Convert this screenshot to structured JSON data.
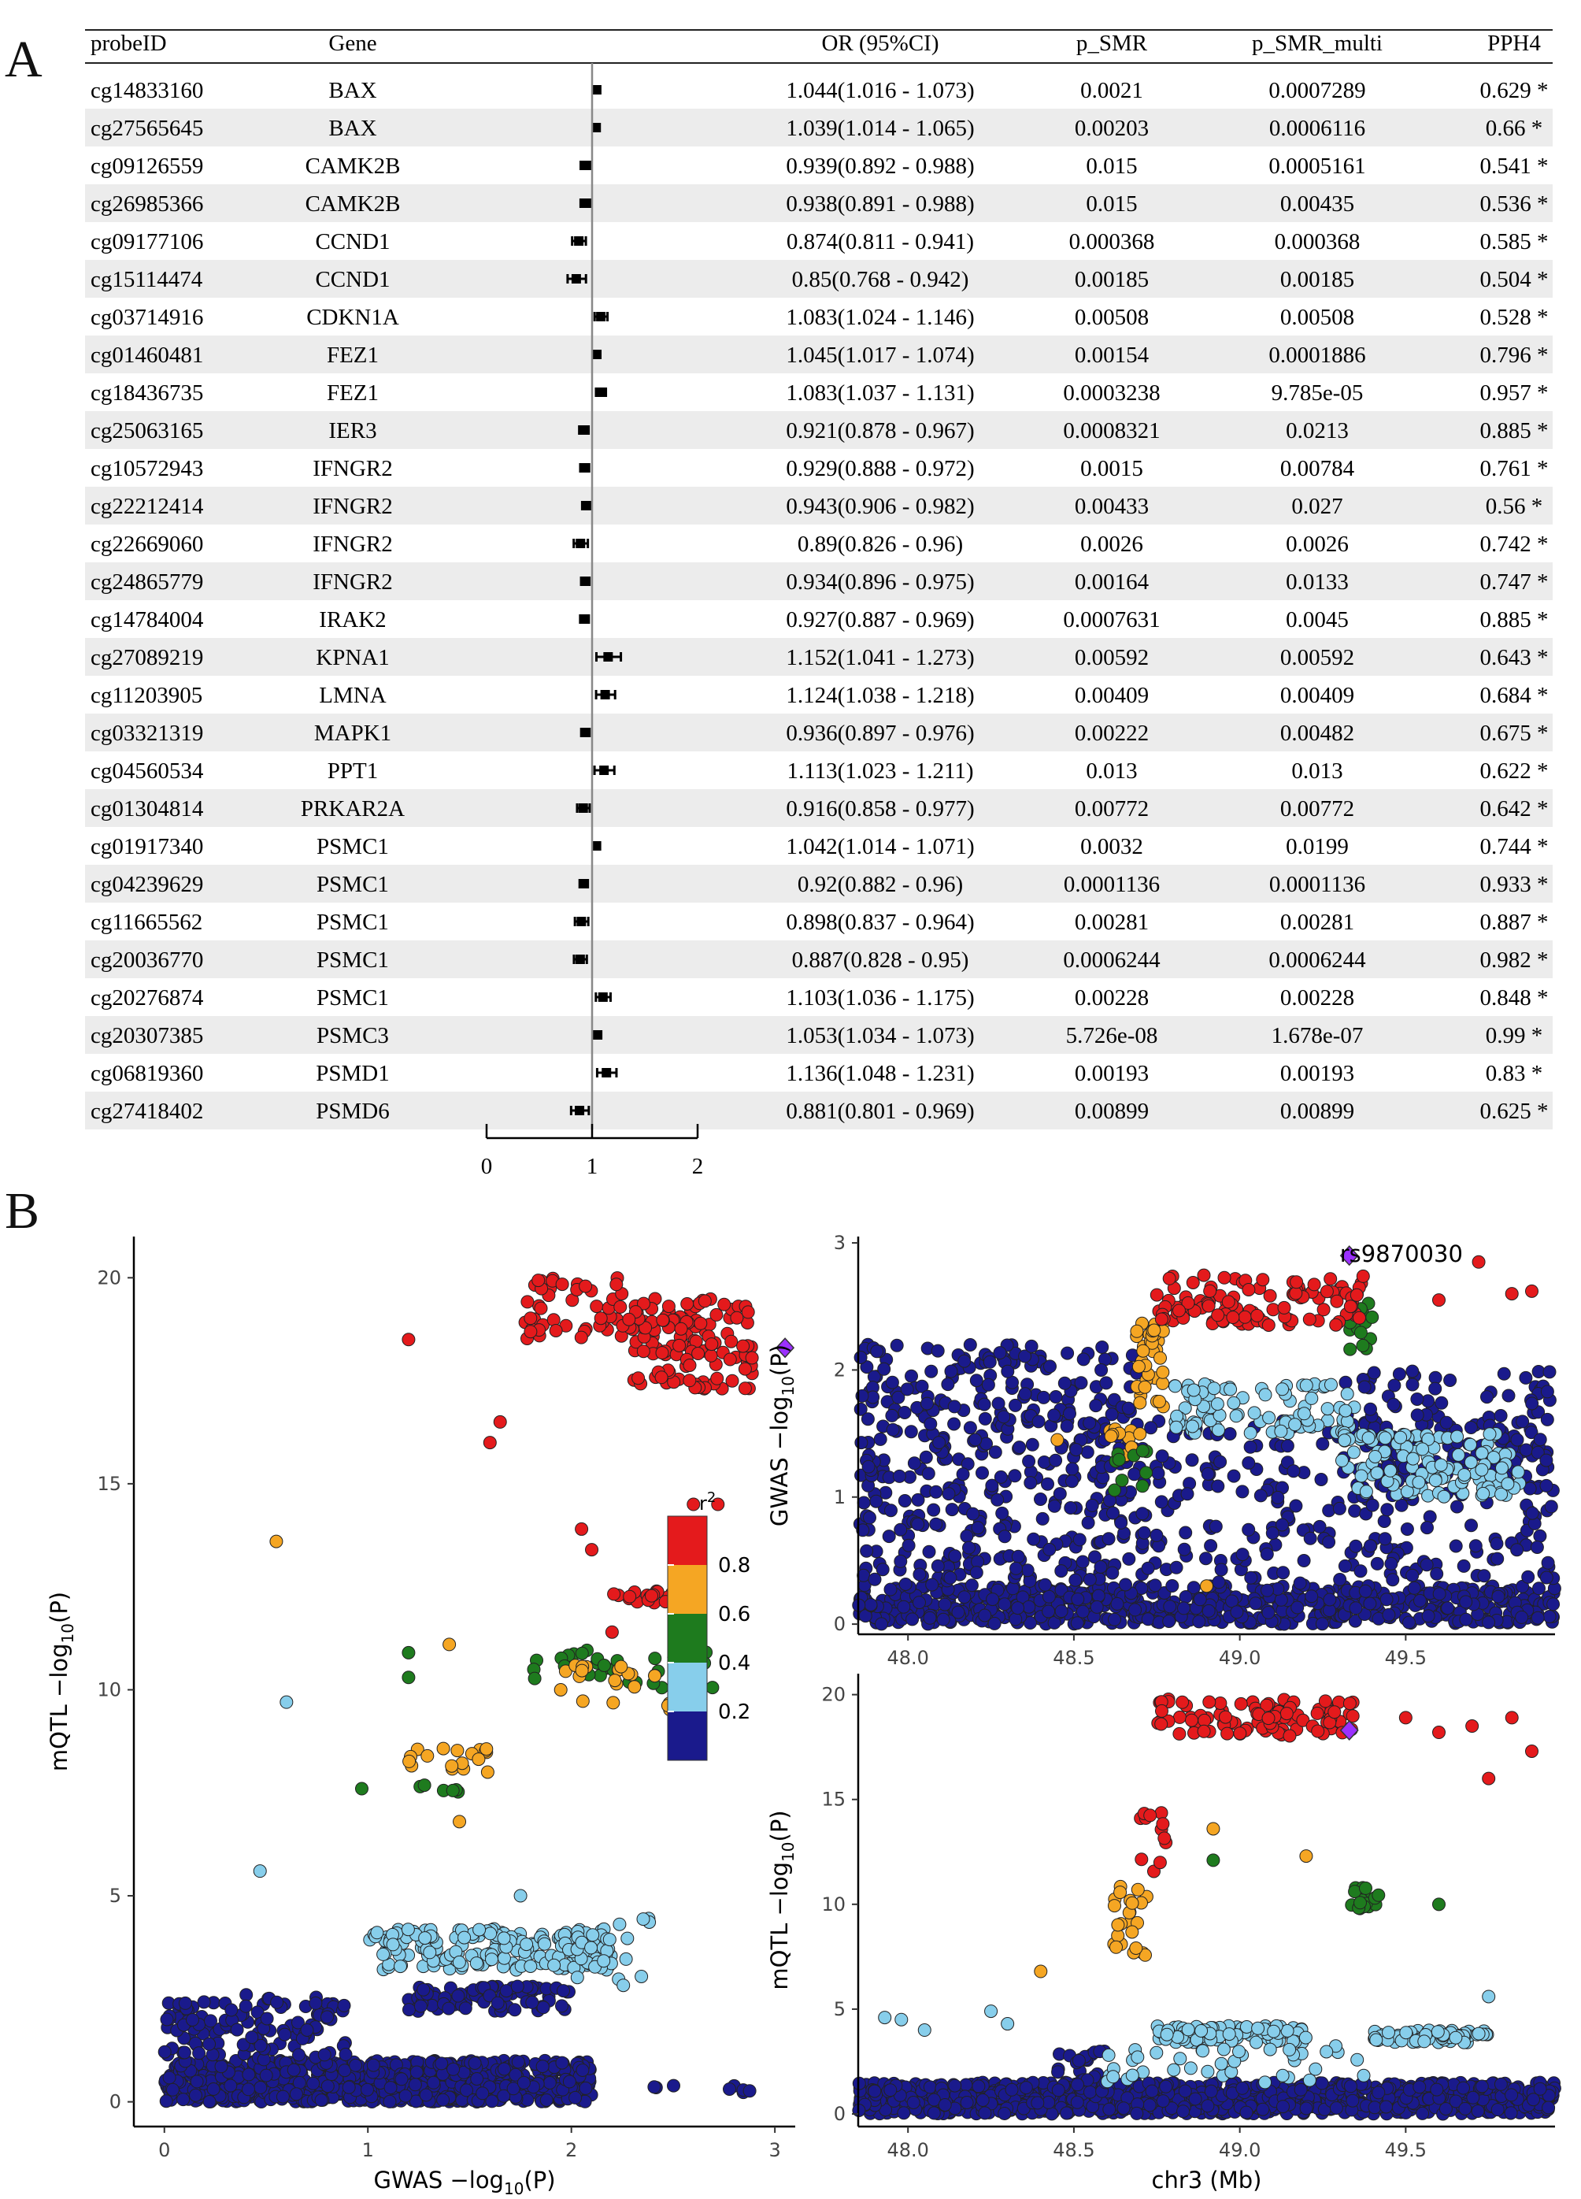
{
  "panel_labels": {
    "a": "A",
    "b": "B"
  },
  "chart_data": [
    {
      "type": "table",
      "name": "forest_plot",
      "columns": [
        "probeID",
        "Gene",
        "OR (95%CI)",
        "p_SMR",
        "p_SMR_multi",
        "PPH4"
      ],
      "axis_ticks": [
        0,
        1,
        2
      ],
      "xlim": [
        0,
        2
      ],
      "reference_line": 1,
      "rows": [
        {
          "probe": "cg14833160",
          "gene": "BAX",
          "or": 1.044,
          "lo": 1.016,
          "hi": 1.073,
          "ci": "1.044(1.016 - 1.073)",
          "p": "0.0021",
          "pm": "0.0007289",
          "pph4": "0.629 *"
        },
        {
          "probe": "cg27565645",
          "gene": "BAX",
          "or": 1.039,
          "lo": 1.014,
          "hi": 1.065,
          "ci": "1.039(1.014 - 1.065)",
          "p": "0.00203",
          "pm": "0.0006116",
          "pph4": "0.66 *"
        },
        {
          "probe": "cg09126559",
          "gene": "CAMK2B",
          "or": 0.939,
          "lo": 0.892,
          "hi": 0.988,
          "ci": "0.939(0.892 - 0.988)",
          "p": "0.015",
          "pm": "0.0005161",
          "pph4": "0.541 *"
        },
        {
          "probe": "cg26985366",
          "gene": "CAMK2B",
          "or": 0.938,
          "lo": 0.891,
          "hi": 0.988,
          "ci": "0.938(0.891 - 0.988)",
          "p": "0.015",
          "pm": "0.00435",
          "pph4": "0.536 *"
        },
        {
          "probe": "cg09177106",
          "gene": "CCND1",
          "or": 0.874,
          "lo": 0.811,
          "hi": 0.941,
          "ci": "0.874(0.811 - 0.941)",
          "p": "0.000368",
          "pm": "0.000368",
          "pph4": "0.585 *"
        },
        {
          "probe": "cg15114474",
          "gene": "CCND1",
          "or": 0.85,
          "lo": 0.768,
          "hi": 0.942,
          "ci": "0.85(0.768 - 0.942)",
          "p": "0.00185",
          "pm": "0.00185",
          "pph4": "0.504 *"
        },
        {
          "probe": "cg03714916",
          "gene": "CDKN1A",
          "or": 1.083,
          "lo": 1.024,
          "hi": 1.146,
          "ci": "1.083(1.024 - 1.146)",
          "p": "0.00508",
          "pm": "0.00508",
          "pph4": "0.528 *"
        },
        {
          "probe": "cg01460481",
          "gene": "FEZ1",
          "or": 1.045,
          "lo": 1.017,
          "hi": 1.074,
          "ci": "1.045(1.017 - 1.074)",
          "p": "0.00154",
          "pm": "0.0001886",
          "pph4": "0.796 *"
        },
        {
          "probe": "cg18436735",
          "gene": "FEZ1",
          "or": 1.083,
          "lo": 1.037,
          "hi": 1.131,
          "ci": "1.083(1.037 - 1.131)",
          "p": "0.0003238",
          "pm": "9.785e-05",
          "pph4": "0.957 *"
        },
        {
          "probe": "cg25063165",
          "gene": "IER3",
          "or": 0.921,
          "lo": 0.878,
          "hi": 0.967,
          "ci": "0.921(0.878 - 0.967)",
          "p": "0.0008321",
          "pm": "0.0213",
          "pph4": "0.885 *"
        },
        {
          "probe": "cg10572943",
          "gene": "IFNGR2",
          "or": 0.929,
          "lo": 0.888,
          "hi": 0.972,
          "ci": "0.929(0.888 - 0.972)",
          "p": "0.0015",
          "pm": "0.00784",
          "pph4": "0.761 *"
        },
        {
          "probe": "cg22212414",
          "gene": "IFNGR2",
          "or": 0.943,
          "lo": 0.906,
          "hi": 0.982,
          "ci": "0.943(0.906 - 0.982)",
          "p": "0.00433",
          "pm": "0.027",
          "pph4": "0.56 *"
        },
        {
          "probe": "cg22669060",
          "gene": "IFNGR2",
          "or": 0.89,
          "lo": 0.826,
          "hi": 0.96,
          "ci": "0.89(0.826 - 0.96)",
          "p": "0.0026",
          "pm": "0.0026",
          "pph4": "0.742 *"
        },
        {
          "probe": "cg24865779",
          "gene": "IFNGR2",
          "or": 0.934,
          "lo": 0.896,
          "hi": 0.975,
          "ci": "0.934(0.896 - 0.975)",
          "p": "0.00164",
          "pm": "0.0133",
          "pph4": "0.747 *"
        },
        {
          "probe": "cg14784004",
          "gene": "IRAK2",
          "or": 0.927,
          "lo": 0.887,
          "hi": 0.969,
          "ci": "0.927(0.887 - 0.969)",
          "p": "0.0007631",
          "pm": "0.0045",
          "pph4": "0.885 *"
        },
        {
          "probe": "cg27089219",
          "gene": "KPNA1",
          "or": 1.152,
          "lo": 1.041,
          "hi": 1.273,
          "ci": "1.152(1.041 - 1.273)",
          "p": "0.00592",
          "pm": "0.00592",
          "pph4": "0.643 *"
        },
        {
          "probe": "cg11203905",
          "gene": "LMNA",
          "or": 1.124,
          "lo": 1.038,
          "hi": 1.218,
          "ci": "1.124(1.038 - 1.218)",
          "p": "0.00409",
          "pm": "0.00409",
          "pph4": "0.684 *"
        },
        {
          "probe": "cg03321319",
          "gene": "MAPK1",
          "or": 0.936,
          "lo": 0.897,
          "hi": 0.976,
          "ci": "0.936(0.897 - 0.976)",
          "p": "0.00222",
          "pm": "0.00482",
          "pph4": "0.675 *"
        },
        {
          "probe": "cg04560534",
          "gene": "PPT1",
          "or": 1.113,
          "lo": 1.023,
          "hi": 1.211,
          "ci": "1.113(1.023 - 1.211)",
          "p": "0.013",
          "pm": "0.013",
          "pph4": "0.622 *"
        },
        {
          "probe": "cg01304814",
          "gene": "PRKAR2A",
          "or": 0.916,
          "lo": 0.858,
          "hi": 0.977,
          "ci": "0.916(0.858 - 0.977)",
          "p": "0.00772",
          "pm": "0.00772",
          "pph4": "0.642 *"
        },
        {
          "probe": "cg01917340",
          "gene": "PSMC1",
          "or": 1.042,
          "lo": 1.014,
          "hi": 1.071,
          "ci": "1.042(1.014 - 1.071)",
          "p": "0.0032",
          "pm": "0.0199",
          "pph4": "0.744 *"
        },
        {
          "probe": "cg04239629",
          "gene": "PSMC1",
          "or": 0.92,
          "lo": 0.882,
          "hi": 0.96,
          "ci": "0.92(0.882 - 0.96)",
          "p": "0.0001136",
          "pm": "0.0001136",
          "pph4": "0.933 *"
        },
        {
          "probe": "cg11665562",
          "gene": "PSMC1",
          "or": 0.898,
          "lo": 0.837,
          "hi": 0.964,
          "ci": "0.898(0.837 - 0.964)",
          "p": "0.00281",
          "pm": "0.00281",
          "pph4": "0.887 *"
        },
        {
          "probe": "cg20036770",
          "gene": "PSMC1",
          "or": 0.887,
          "lo": 0.828,
          "hi": 0.95,
          "ci": "0.887(0.828 - 0.95)",
          "p": "0.0006244",
          "pm": "0.0006244",
          "pph4": "0.982 *"
        },
        {
          "probe": "cg20276874",
          "gene": "PSMC1",
          "or": 1.103,
          "lo": 1.036,
          "hi": 1.175,
          "ci": "1.103(1.036 - 1.175)",
          "p": "0.00228",
          "pm": "0.00228",
          "pph4": "0.848 *"
        },
        {
          "probe": "cg20307385",
          "gene": "PSMC3",
          "or": 1.053,
          "lo": 1.034,
          "hi": 1.073,
          "ci": "1.053(1.034 - 1.073)",
          "p": "5.726e-08",
          "pm": "1.678e-07",
          "pph4": "0.99 *"
        },
        {
          "probe": "cg06819360",
          "gene": "PSMD1",
          "or": 1.136,
          "lo": 1.048,
          "hi": 1.231,
          "ci": "1.136(1.048 - 1.231)",
          "p": "0.00193",
          "pm": "0.00193",
          "pph4": "0.83 *"
        },
        {
          "probe": "cg27418402",
          "gene": "PSMD6",
          "or": 0.881,
          "lo": 0.801,
          "hi": 0.969,
          "ci": "0.881(0.801 - 0.969)",
          "p": "0.00899",
          "pm": "0.00899",
          "pph4": "0.625 *"
        }
      ]
    },
    {
      "type": "scatter",
      "name": "mqtl_vs_gwas",
      "xlabel": "GWAS −log",
      "xlabel_sub": "10",
      "xlabel_tail": "(P)",
      "ylabel": "mQTL −log",
      "ylabel_sub": "10",
      "ylabel_tail": "(P)",
      "xlim": [
        -0.15,
        3.1
      ],
      "ylim": [
        -0.6,
        21
      ],
      "xticks": [
        0,
        1,
        2,
        3
      ],
      "yticks": [
        0,
        5,
        10,
        15,
        20
      ],
      "legend": {
        "title": "r",
        "title_sup": "2",
        "labels": [
          "0.8",
          "0.6",
          "0.4",
          "0.2"
        ],
        "placement": "center-right"
      },
      "colors": {
        "r08": "#e41a1c",
        "r06": "#f5a623",
        "r04": "#1e7b1e",
        "r02": "#87ceeb",
        "r00": "#1a1a8c",
        "lead": "#9b30ff"
      },
      "lead_snp": {
        "x": 3.05,
        "y": 18.3
      },
      "clusters": [
        {
          "color": "r00",
          "x": [
            0,
            2.1
          ],
          "y": [
            0,
            1.0
          ],
          "n": 900
        },
        {
          "color": "r00",
          "x": [
            0,
            0.9
          ],
          "y": [
            1.0,
            2.6
          ],
          "n": 120
        },
        {
          "color": "r00",
          "x": [
            1.2,
            2.0
          ],
          "y": [
            2.2,
            2.8
          ],
          "n": 80
        },
        {
          "color": "r00",
          "x": [
            2.4,
            2.9
          ],
          "y": [
            0.2,
            0.4
          ],
          "n": 8
        },
        {
          "color": "r02",
          "x": [
            1.0,
            2.2
          ],
          "y": [
            3.2,
            4.2
          ],
          "n": 180
        },
        {
          "color": "r02",
          "x": [
            2.0,
            2.4
          ],
          "y": [
            2.8,
            4.5
          ],
          "n": 20
        },
        {
          "color": "r04",
          "x": [
            1.8,
            2.7
          ],
          "y": [
            10.0,
            11.0
          ],
          "n": 35
        },
        {
          "color": "r04",
          "x": [
            1.25,
            1.45
          ],
          "y": [
            7.5,
            7.7
          ],
          "n": 6
        },
        {
          "color": "r06",
          "x": [
            1.2,
            1.6
          ],
          "y": [
            8.0,
            8.6
          ],
          "n": 18
        },
        {
          "color": "r06",
          "x": [
            1.9,
            2.5
          ],
          "y": [
            9.5,
            10.6
          ],
          "n": 20
        },
        {
          "color": "r08",
          "x": [
            2.15,
            2.55
          ],
          "y": [
            12.1,
            12.4
          ],
          "n": 20
        },
        {
          "color": "r08",
          "x": [
            2.3,
            2.9
          ],
          "y": [
            17.3,
            19.5
          ],
          "n": 120
        },
        {
          "color": "r08",
          "x": [
            1.75,
            2.3
          ],
          "y": [
            18.5,
            20.0
          ],
          "n": 50
        }
      ],
      "points": [
        {
          "x": 0.55,
          "y": 13.6,
          "c": "r06"
        },
        {
          "x": 1.4,
          "y": 11.1,
          "c": "r06"
        },
        {
          "x": 1.45,
          "y": 6.8,
          "c": "r06"
        },
        {
          "x": 0.6,
          "y": 9.7,
          "c": "r02"
        },
        {
          "x": 0.47,
          "y": 5.6,
          "c": "r02"
        },
        {
          "x": 1.75,
          "y": 5.0,
          "c": "r02"
        },
        {
          "x": 1.2,
          "y": 10.9,
          "c": "r04"
        },
        {
          "x": 1.2,
          "y": 10.3,
          "c": "r04"
        },
        {
          "x": 0.97,
          "y": 7.6,
          "c": "r04"
        },
        {
          "x": 1.2,
          "y": 18.5,
          "c": "r08"
        },
        {
          "x": 1.6,
          "y": 16.0,
          "c": "r08"
        },
        {
          "x": 1.65,
          "y": 16.5,
          "c": "r08"
        },
        {
          "x": 2.05,
          "y": 13.9,
          "c": "r08"
        },
        {
          "x": 2.1,
          "y": 13.4,
          "c": "r08"
        },
        {
          "x": 2.6,
          "y": 14.5,
          "c": "r08"
        },
        {
          "x": 2.72,
          "y": 14.5,
          "c": "r08"
        },
        {
          "x": 2.2,
          "y": 11.4,
          "c": "r08"
        }
      ]
    },
    {
      "type": "scatter",
      "name": "gwas_locus",
      "xlabel": "",
      "ylabel": "GWAS −log",
      "ylabel_sub": "10",
      "ylabel_tail": "(P)",
      "xlim": [
        47.85,
        49.95
      ],
      "ylim": [
        -0.08,
        3.05
      ],
      "xticks": [
        48.0,
        48.5,
        49.0,
        49.5
      ],
      "yticks": [
        0,
        1,
        2,
        3
      ],
      "lead_snp_label": "rs9870030",
      "lead_snp": {
        "x": 49.33,
        "y": 2.9
      },
      "clusters": [
        {
          "color": "r00",
          "x": [
            47.85,
            49.95
          ],
          "y": [
            0,
            0.3
          ],
          "n": 600
        },
        {
          "color": "r00",
          "x": [
            47.85,
            48.7
          ],
          "y": [
            0.3,
            2.2
          ],
          "n": 420
        },
        {
          "color": "r00",
          "x": [
            48.7,
            49.95
          ],
          "y": [
            0.3,
            1.6
          ],
          "n": 250
        },
        {
          "color": "r00",
          "x": [
            49.3,
            49.95
          ],
          "y": [
            1.0,
            2.0
          ],
          "n": 120
        },
        {
          "color": "r02",
          "x": [
            48.8,
            49.35
          ],
          "y": [
            1.5,
            1.9
          ],
          "n": 90
        },
        {
          "color": "r02",
          "x": [
            49.3,
            49.85
          ],
          "y": [
            1.0,
            1.5
          ],
          "n": 120
        },
        {
          "color": "r06",
          "x": [
            48.68,
            48.78
          ],
          "y": [
            1.7,
            2.4
          ],
          "n": 35
        },
        {
          "color": "r06",
          "x": [
            48.6,
            48.7
          ],
          "y": [
            1.2,
            1.6
          ],
          "n": 10
        },
        {
          "color": "r04",
          "x": [
            48.62,
            48.72
          ],
          "y": [
            1.0,
            1.5
          ],
          "n": 10
        },
        {
          "color": "r04",
          "x": [
            49.33,
            49.4
          ],
          "y": [
            2.1,
            2.6
          ],
          "n": 14
        },
        {
          "color": "r08",
          "x": [
            48.75,
            49.4
          ],
          "y": [
            2.35,
            2.75
          ],
          "n": 110
        }
      ],
      "points": [
        {
          "x": 49.6,
          "y": 2.55,
          "c": "r08"
        },
        {
          "x": 49.82,
          "y": 2.6,
          "c": "r08"
        },
        {
          "x": 49.88,
          "y": 2.62,
          "c": "r08"
        },
        {
          "x": 49.72,
          "y": 2.85,
          "c": "r08"
        },
        {
          "x": 48.9,
          "y": 0.3,
          "c": "r06"
        },
        {
          "x": 48.45,
          "y": 1.45,
          "c": "r06"
        }
      ]
    },
    {
      "type": "scatter",
      "name": "mqtl_locus",
      "xlabel": "chr3 (Mb)",
      "ylabel": "mQTL −log",
      "ylabel_sub": "10",
      "ylabel_tail": "(P)",
      "xlim": [
        47.85,
        49.95
      ],
      "ylim": [
        -0.6,
        21
      ],
      "xticks": [
        48.0,
        48.5,
        49.0,
        49.5
      ],
      "yticks": [
        0,
        5,
        10,
        15,
        20
      ],
      "lead_snp": {
        "x": 49.33,
        "y": 18.3
      },
      "clusters": [
        {
          "color": "r00",
          "x": [
            47.85,
            49.95
          ],
          "y": [
            0,
            1.5
          ],
          "n": 1000
        },
        {
          "color": "r00",
          "x": [
            48.45,
            48.6
          ],
          "y": [
            1.0,
            3.0
          ],
          "n": 30
        },
        {
          "color": "r02",
          "x": [
            48.75,
            49.2
          ],
          "y": [
            3.4,
            4.2
          ],
          "n": 90
        },
        {
          "color": "r02",
          "x": [
            49.4,
            49.75
          ],
          "y": [
            3.4,
            4.0
          ],
          "n": 60
        },
        {
          "color": "r02",
          "x": [
            48.6,
            49.4
          ],
          "y": [
            1.5,
            3.3
          ],
          "n": 40
        },
        {
          "color": "r06",
          "x": [
            48.62,
            48.72
          ],
          "y": [
            7.5,
            11.0
          ],
          "n": 25
        },
        {
          "color": "r04",
          "x": [
            49.33,
            49.42
          ],
          "y": [
            9.8,
            10.8
          ],
          "n": 16
        },
        {
          "color": "r08",
          "x": [
            48.7,
            48.78
          ],
          "y": [
            11.5,
            14.5
          ],
          "n": 12
        },
        {
          "color": "r08",
          "x": [
            48.75,
            49.35
          ],
          "y": [
            18.0,
            19.8
          ],
          "n": 100
        }
      ],
      "points": [
        {
          "x": 48.4,
          "y": 6.8,
          "c": "r06"
        },
        {
          "x": 48.92,
          "y": 13.6,
          "c": "r06"
        },
        {
          "x": 49.2,
          "y": 12.3,
          "c": "r06"
        },
        {
          "x": 48.92,
          "y": 12.1,
          "c": "r04"
        },
        {
          "x": 49.6,
          "y": 10.0,
          "c": "r04"
        },
        {
          "x": 47.93,
          "y": 4.6,
          "c": "r02"
        },
        {
          "x": 47.98,
          "y": 4.5,
          "c": "r02"
        },
        {
          "x": 48.25,
          "y": 4.9,
          "c": "r02"
        },
        {
          "x": 48.3,
          "y": 4.3,
          "c": "r02"
        },
        {
          "x": 48.05,
          "y": 4.0,
          "c": "r02"
        },
        {
          "x": 49.75,
          "y": 5.6,
          "c": "r02"
        },
        {
          "x": 49.5,
          "y": 18.9,
          "c": "r08"
        },
        {
          "x": 49.6,
          "y": 18.2,
          "c": "r08"
        },
        {
          "x": 49.7,
          "y": 18.5,
          "c": "r08"
        },
        {
          "x": 49.75,
          "y": 16.0,
          "c": "r08"
        },
        {
          "x": 49.88,
          "y": 17.3,
          "c": "r08"
        },
        {
          "x": 49.82,
          "y": 18.9,
          "c": "r08"
        }
      ]
    }
  ]
}
